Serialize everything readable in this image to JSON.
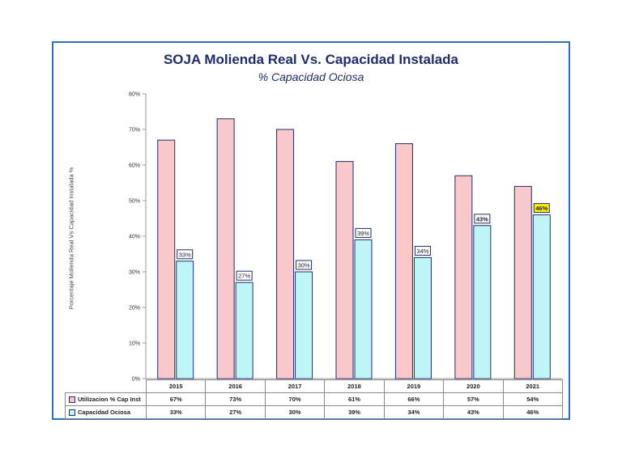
{
  "colors": {
    "series1": "#f9c8cb",
    "series2": "#bff5f7",
    "edge": "#1f2d6b",
    "highlight": "#fff200",
    "frame": "#2f6fb6"
  },
  "chart_data": {
    "type": "bar",
    "title": "SOJA Molienda Real Vs. Capacidad Instalada",
    "subtitle": "% Capacidad Ociosa",
    "ylabel": "Porcentaje Molienda Real Vs Capacidad Instalada %",
    "categories": [
      "2015",
      "2016",
      "2017",
      "2018",
      "2019",
      "2020",
      "2021"
    ],
    "ylim": [
      0,
      80
    ],
    "yticks": [
      "0%",
      "10%",
      "20%",
      "30%",
      "40%",
      "50%",
      "60%",
      "70%",
      "80%"
    ],
    "grid": false,
    "series": [
      {
        "name": "Utilizacion % Cap Inst",
        "values": [
          67,
          73,
          70,
          61,
          66,
          57,
          54
        ],
        "table_labels": [
          "67%",
          "73%",
          "70%",
          "61%",
          "66%",
          "57%",
          "54%"
        ]
      },
      {
        "name": "Capacidad Ociosa",
        "values": [
          33,
          27,
          30,
          39,
          34,
          43,
          46
        ],
        "table_labels": [
          "33%",
          "27%",
          "30%",
          "39%",
          "34%",
          "43%",
          "46%"
        ]
      }
    ],
    "data_labels": [
      "33%",
      "27%",
      "30%",
      "39%",
      "34%",
      "43%",
      "46%"
    ]
  }
}
